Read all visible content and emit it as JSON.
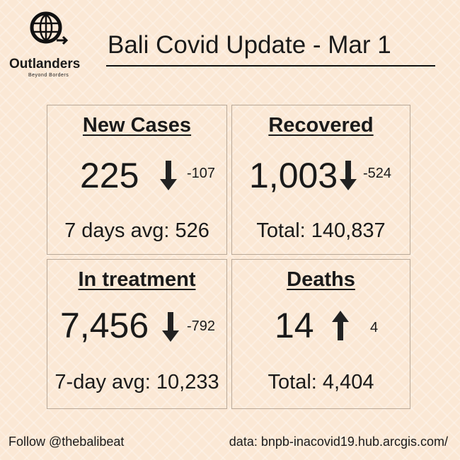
{
  "logo": {
    "name": "Outlanders",
    "tagline": "Beyond Borders"
  },
  "title": "Bali Covid Update - Mar 1",
  "cards": [
    {
      "heading": "New Cases",
      "value": "225",
      "change": "-107",
      "summary": "7 days avg: 526"
    },
    {
      "heading": "Recovered",
      "value": "1,003",
      "change": "-524",
      "summary": "Total: 140,837"
    },
    {
      "heading": "In treatment",
      "value": "7,456",
      "change": "-792",
      "summary": "7-day avg: 10,233"
    },
    {
      "heading": "Deaths",
      "value": "14",
      "change": "4",
      "summary": "Total: 4,404"
    }
  ],
  "footer": {
    "follow": "Follow @thebalibeat",
    "source": "data: bnpb-inacovid19.hub.arcgis.com/"
  }
}
